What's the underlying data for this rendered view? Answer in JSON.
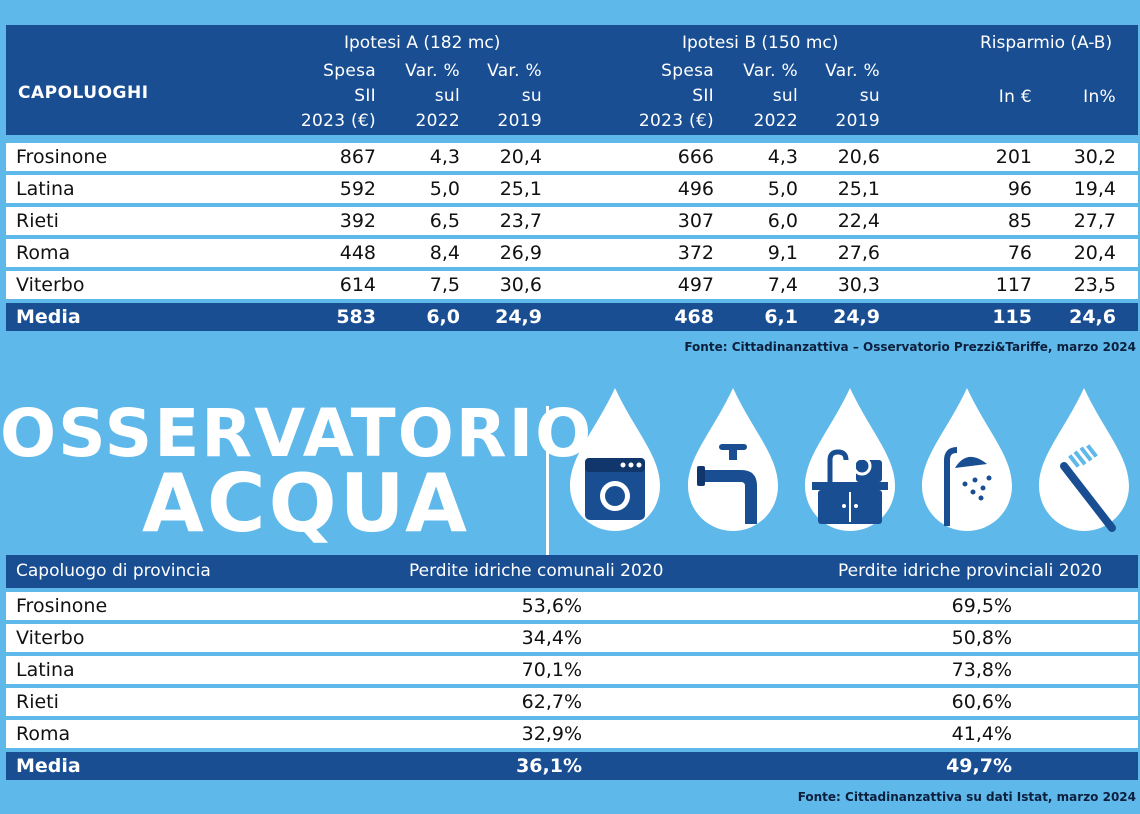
{
  "table1": {
    "group_a": "Ipotesi A (182 mc)",
    "group_b": "Ipotesi B (150 mc)",
    "group_c": "Risparmio (A-B)",
    "capoluoghi": "CAPOLUOGHI",
    "col_spesa": [
      "Spesa",
      "SII",
      "2023 (€)"
    ],
    "col_var22": [
      "Var. %",
      "sul",
      "2022"
    ],
    "col_var19": [
      "Var. %",
      "su",
      "2019"
    ],
    "col_in_eur": "In €",
    "col_in_pct": "In%",
    "rows": [
      {
        "name": "Frosinone",
        "a_spesa": "867",
        "a_v22": "4,3",
        "a_v19": "20,4",
        "b_spesa": "666",
        "b_v22": "4,3",
        "b_v19": "20,6",
        "r_eur": "201",
        "r_pct": "30,2"
      },
      {
        "name": "Latina",
        "a_spesa": "592",
        "a_v22": "5,0",
        "a_v19": "25,1",
        "b_spesa": "496",
        "b_v22": "5,0",
        "b_v19": "25,1",
        "r_eur": "96",
        "r_pct": "19,4"
      },
      {
        "name": "Rieti",
        "a_spesa": "392",
        "a_v22": "6,5",
        "a_v19": "23,7",
        "b_spesa": "307",
        "b_v22": "6,0",
        "b_v19": "22,4",
        "r_eur": "85",
        "r_pct": "27,7"
      },
      {
        "name": "Roma",
        "a_spesa": "448",
        "a_v22": "8,4",
        "a_v19": "26,9",
        "b_spesa": "372",
        "b_v22": "9,1",
        "b_v19": "27,6",
        "r_eur": "76",
        "r_pct": "20,4"
      },
      {
        "name": "Viterbo",
        "a_spesa": "614",
        "a_v22": "7,5",
        "a_v19": "30,6",
        "b_spesa": "497",
        "b_v22": "7,4",
        "b_v19": "30,3",
        "r_eur": "117",
        "r_pct": "23,5"
      },
      {
        "name": "Media",
        "a_spesa": "583",
        "a_v22": "6,0",
        "a_v19": "24,9",
        "b_spesa": "468",
        "b_v22": "6,1",
        "b_v19": "24,9",
        "r_eur": "115",
        "r_pct": "24,6"
      }
    ],
    "fonte": "Fonte: Cittadinanzattiva – Osservatorio Prezzi&Tariffe, marzo 2024"
  },
  "title": {
    "line1": "OSSERVATORIO",
    "line2": "ACQUA"
  },
  "icons": [
    "washing-machine-icon",
    "faucet-icon",
    "sink-icon",
    "shower-icon",
    "toothbrush-icon"
  ],
  "table2": {
    "col1": "Capoluogo di provincia",
    "col2": "Perdite idriche comunali 2020",
    "col3": "Perdite idriche provinciali 2020",
    "rows": [
      {
        "name": "Frosinone",
        "com": "53,6%",
        "prov": "69,5%"
      },
      {
        "name": "Viterbo",
        "com": "34,4%",
        "prov": "50,8%"
      },
      {
        "name": "Latina",
        "com": "70,1%",
        "prov": "73,8%"
      },
      {
        "name": "Rieti",
        "com": "62,7%",
        "prov": "60,6%"
      },
      {
        "name": "Roma",
        "com": "32,9%",
        "prov": "41,4%"
      },
      {
        "name": "Media",
        "com": "36,1%",
        "prov": "49,7%"
      }
    ],
    "fonte": "Fonte: Cittadinanzattiva su dati Istat, marzo 2024"
  },
  "colors": {
    "navy": "#1a4e93",
    "sky": "#5fb8ea",
    "white": "#ffffff"
  }
}
